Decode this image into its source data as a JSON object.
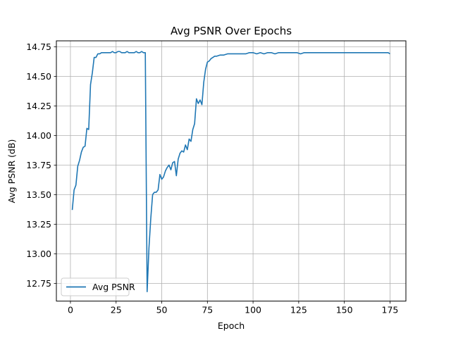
{
  "chart_data": {
    "type": "line",
    "title": "Avg PSNR Over Epochs",
    "xlabel": "Epoch",
    "ylabel": "Avg PSNR (dB)",
    "xlim": [
      -7.7,
      183.7
    ],
    "ylim": [
      12.6,
      14.8
    ],
    "xticks": [
      0,
      25,
      50,
      75,
      100,
      125,
      150,
      175
    ],
    "xtick_labels": [
      "0",
      "25",
      "50",
      "75",
      "100",
      "125",
      "150",
      "175"
    ],
    "yticks": [
      12.75,
      13.0,
      13.25,
      13.5,
      13.75,
      14.0,
      14.25,
      14.5,
      14.75
    ],
    "ytick_labels": [
      "12.75",
      "13.00",
      "13.25",
      "13.50",
      "13.75",
      "14.00",
      "14.25",
      "14.50",
      "14.75"
    ],
    "grid": true,
    "legend": {
      "placement": "lower-left",
      "entries": [
        "Avg PSNR"
      ]
    },
    "series": [
      {
        "name": "Avg PSNR",
        "color": "#1f77b4",
        "x": [
          1,
          2,
          3,
          4,
          5,
          6,
          7,
          8,
          9,
          10,
          11,
          12,
          13,
          14,
          15,
          16,
          17,
          18,
          19,
          20,
          21,
          22,
          23,
          24,
          25,
          26,
          27,
          28,
          29,
          30,
          31,
          32,
          33,
          34,
          35,
          36,
          37,
          38,
          39,
          40,
          41,
          42,
          43,
          44,
          45,
          46,
          47,
          48,
          49,
          50,
          51,
          52,
          53,
          54,
          55,
          56,
          57,
          58,
          59,
          60,
          61,
          62,
          63,
          64,
          65,
          66,
          67,
          68,
          69,
          70,
          71,
          72,
          73,
          74,
          75,
          76,
          77,
          78,
          79,
          80,
          82,
          84,
          86,
          88,
          90,
          92,
          94,
          96,
          98,
          100,
          102,
          104,
          106,
          108,
          110,
          112,
          114,
          116,
          118,
          120,
          122,
          124,
          126,
          128,
          130,
          132,
          134,
          136,
          138,
          140,
          142,
          144,
          146,
          148,
          150,
          152,
          154,
          156,
          158,
          160,
          162,
          164,
          166,
          168,
          170,
          172,
          174,
          175
        ],
        "values": [
          13.37,
          13.54,
          13.58,
          13.74,
          13.79,
          13.86,
          13.9,
          13.91,
          14.06,
          14.05,
          14.43,
          14.53,
          14.66,
          14.66,
          14.69,
          14.69,
          14.7,
          14.7,
          14.7,
          14.7,
          14.7,
          14.7,
          14.71,
          14.7,
          14.7,
          14.71,
          14.71,
          14.7,
          14.7,
          14.7,
          14.71,
          14.7,
          14.7,
          14.7,
          14.7,
          14.71,
          14.7,
          14.7,
          14.71,
          14.7,
          14.7,
          12.68,
          13.05,
          13.3,
          13.5,
          13.52,
          13.52,
          13.54,
          13.67,
          13.63,
          13.65,
          13.7,
          13.73,
          13.75,
          13.71,
          13.77,
          13.78,
          13.66,
          13.8,
          13.85,
          13.87,
          13.86,
          13.92,
          13.88,
          13.97,
          13.95,
          14.05,
          14.1,
          14.31,
          14.27,
          14.3,
          14.26,
          14.45,
          14.56,
          14.62,
          14.63,
          14.65,
          14.66,
          14.67,
          14.67,
          14.68,
          14.68,
          14.69,
          14.69,
          14.69,
          14.69,
          14.69,
          14.69,
          14.7,
          14.7,
          14.69,
          14.7,
          14.69,
          14.7,
          14.7,
          14.69,
          14.7,
          14.7,
          14.7,
          14.7,
          14.7,
          14.7,
          14.69,
          14.7,
          14.7,
          14.7,
          14.7,
          14.7,
          14.7,
          14.7,
          14.7,
          14.7,
          14.7,
          14.7,
          14.7,
          14.7,
          14.7,
          14.7,
          14.7,
          14.7,
          14.7,
          14.7,
          14.7,
          14.7,
          14.7,
          14.7,
          14.7,
          14.69
        ]
      }
    ]
  }
}
